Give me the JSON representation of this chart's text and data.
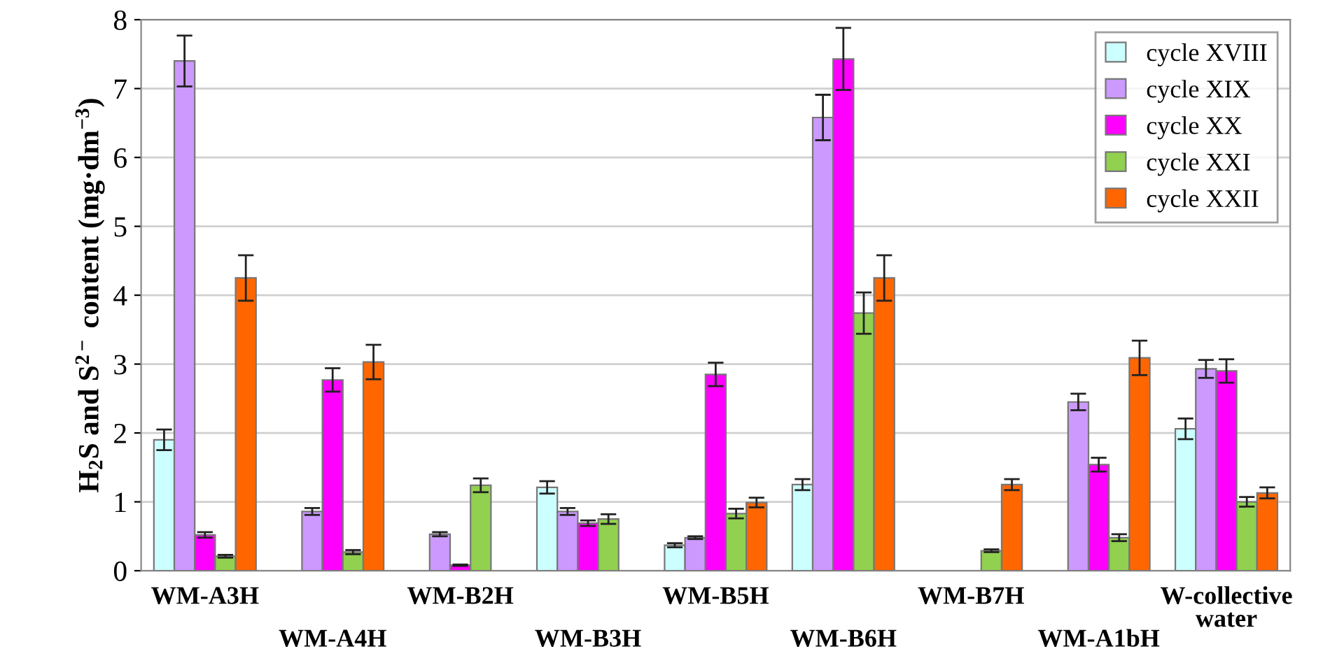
{
  "chart_data": {
    "type": "bar",
    "ylabel": "H$_{2}$S and S$^{2−}$ content (mg·dm$^{−3}$)",
    "categories": [
      "WM-A3H",
      "WM-A4H",
      "WM-B2H",
      "WM-B3H",
      "WM-B5H",
      "WM-B6H",
      "WM-B7H",
      "WM-A1bH",
      "W-collective\nwater"
    ],
    "series": [
      {
        "name": "cycle XVIII",
        "color": "#ccffff",
        "values": [
          1.9,
          0,
          0,
          1.21,
          0.37,
          1.25,
          0,
          0,
          2.06
        ],
        "errors": [
          0.15,
          null,
          null,
          0.09,
          0.03,
          0.08,
          null,
          null,
          0.15
        ]
      },
      {
        "name": "cycle XIX",
        "color": "#cc99ff",
        "values": [
          7.4,
          0.86,
          0.53,
          0.86,
          0.48,
          6.58,
          0,
          2.45,
          2.93
        ],
        "errors": [
          0.37,
          0.05,
          0.03,
          0.05,
          0.02,
          0.33,
          null,
          0.12,
          0.13
        ]
      },
      {
        "name": "cycle XX",
        "color": "#ff00ff",
        "values": [
          0.52,
          2.77,
          0.08,
          0.69,
          2.85,
          7.43,
          0,
          1.54,
          2.9
        ],
        "errors": [
          0.04,
          0.17,
          0.01,
          0.04,
          0.17,
          0.45,
          null,
          0.1,
          0.17
        ]
      },
      {
        "name": "cycle XXI",
        "color": "#92d050",
        "values": [
          0.21,
          0.27,
          1.24,
          0.75,
          0.83,
          3.74,
          0.29,
          0.48,
          1.0
        ],
        "errors": [
          0.02,
          0.03,
          0.1,
          0.07,
          0.07,
          0.3,
          0.02,
          0.05,
          0.07
        ]
      },
      {
        "name": "cycle XXII",
        "color": "#ff6600",
        "values": [
          4.25,
          3.03,
          0,
          0,
          0.99,
          4.25,
          1.25,
          3.09,
          1.13
        ],
        "errors": [
          0.33,
          0.25,
          null,
          null,
          0.07,
          0.33,
          0.08,
          0.25,
          0.08
        ]
      }
    ],
    "ylim": [
      0,
      8
    ],
    "yticks": [
      0,
      1,
      2,
      3,
      4,
      5,
      6,
      7,
      8
    ],
    "grid": "y",
    "legend": "top right"
  }
}
